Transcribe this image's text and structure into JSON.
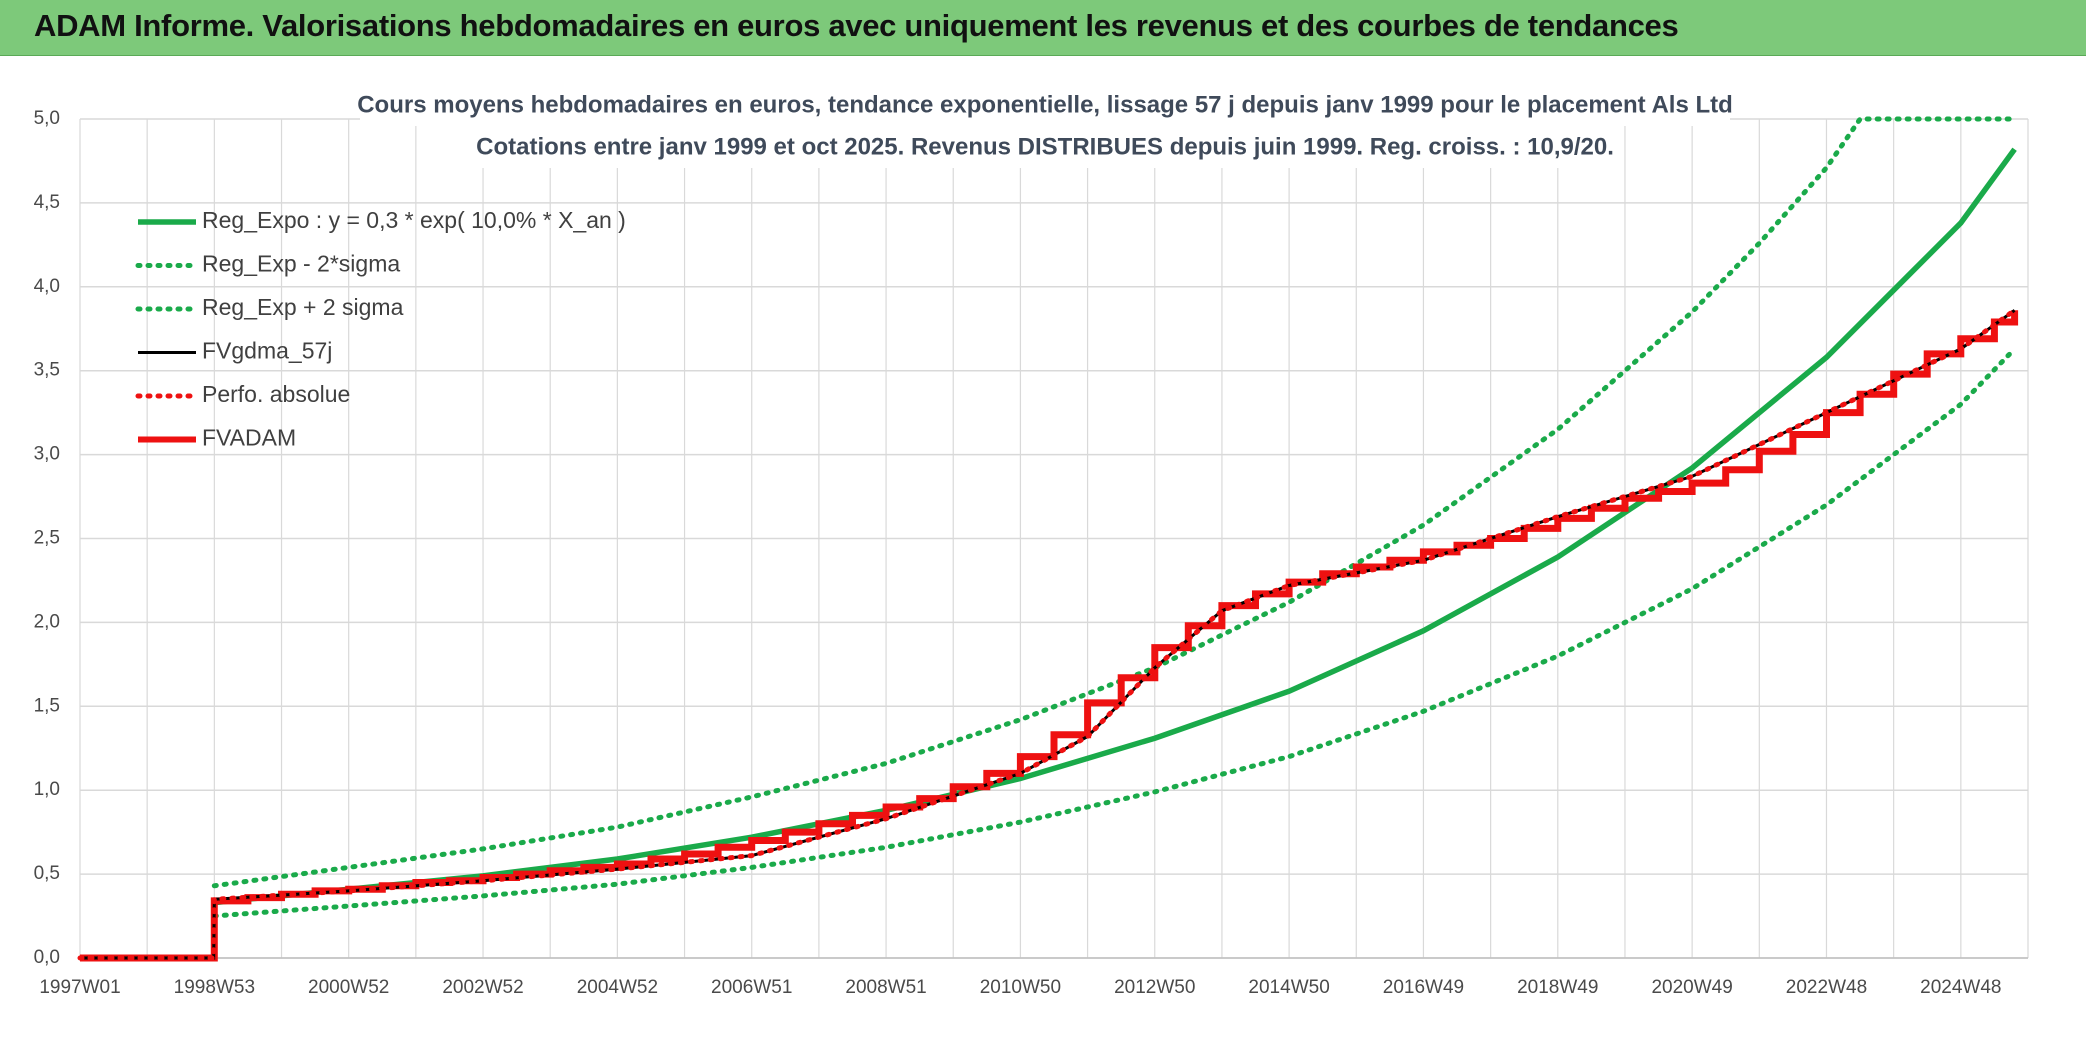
{
  "header": {
    "title": "ADAM Informe. Valorisations hebdomadaires en euros avec uniquement les revenus et des courbes de tendances"
  },
  "colors": {
    "header_bg": "#7dc97a",
    "reg_green": "#1aaa4a",
    "fv_black": "#000000",
    "red": "#ee1111",
    "grid": "#d9d9d9",
    "corner_accent": "#f2c40f"
  },
  "chart_data": {
    "type": "line",
    "title_line1": "Cours moyens hebdomadaires en euros, tendance exponentielle, lissage 57 j depuis janv 1999 pour le placement Als Ltd",
    "title_line2": "Cotations entre janv 1999 et oct 2025. Revenus DISTRIBUES depuis juin 1999. Reg. croiss. : 10,9/20.",
    "xlabel": "",
    "ylabel": "",
    "ylim": [
      0,
      5
    ],
    "y_ticks": [
      "0,0",
      "0,5",
      "1,0",
      "1,5",
      "2,0",
      "2,5",
      "3,0",
      "3,5",
      "4,0",
      "4,5",
      "5,0"
    ],
    "x_range_years": [
      1997.0,
      2026.0
    ],
    "x_tick_labels": [
      "1997W01",
      "1998W53",
      "2000W52",
      "2002W52",
      "2004W52",
      "2006W51",
      "2008W51",
      "2010W50",
      "2012W50",
      "2014W50",
      "2016W49",
      "2018W49",
      "2020W49",
      "2022W48",
      "2024W48"
    ],
    "x_tick_years": [
      1997.0,
      1999.0,
      2001.0,
      2003.0,
      2005.0,
      2007.0,
      2009.0,
      2011.0,
      2013.0,
      2015.0,
      2017.0,
      2019.0,
      2021.0,
      2023.0,
      2025.0
    ],
    "grid": true,
    "legend_position": "top-left",
    "series": [
      {
        "name": "Reg_Expo : y = 0,3 * exp( 10,0% *  X_an )",
        "color": "#1aaa4a",
        "style": "solid",
        "x": [
          1999.0,
          2001.0,
          2003.0,
          2005.0,
          2007.0,
          2009.0,
          2011.0,
          2013.0,
          2015.0,
          2017.0,
          2019.0,
          2021.0,
          2023.0,
          2025.0,
          2025.8
        ],
        "y": [
          0.33,
          0.41,
          0.49,
          0.59,
          0.72,
          0.88,
          1.07,
          1.31,
          1.59,
          1.95,
          2.39,
          2.92,
          3.58,
          4.38,
          4.82
        ]
      },
      {
        "name": "Reg_Exp - 2*sigma",
        "color": "#1aaa4a",
        "style": "dotted",
        "x": [
          1999.0,
          2001.0,
          2003.0,
          2005.0,
          2007.0,
          2009.0,
          2011.0,
          2013.0,
          2015.0,
          2017.0,
          2019.0,
          2021.0,
          2023.0,
          2025.0,
          2025.8
        ],
        "y": [
          0.25,
          0.31,
          0.37,
          0.44,
          0.54,
          0.66,
          0.81,
          0.99,
          1.2,
          1.47,
          1.8,
          2.2,
          2.7,
          3.3,
          3.63
        ]
      },
      {
        "name": "Reg_Exp + 2 sigma",
        "color": "#1aaa4a",
        "style": "dotted",
        "x": [
          1999.0,
          2001.0,
          2003.0,
          2005.0,
          2007.0,
          2009.0,
          2011.0,
          2013.0,
          2015.0,
          2017.0,
          2019.0,
          2021.0,
          2022.0,
          2023.0,
          2023.5,
          2025.8
        ],
        "y": [
          0.43,
          0.54,
          0.65,
          0.78,
          0.96,
          1.16,
          1.42,
          1.73,
          2.12,
          2.58,
          3.15,
          3.85,
          4.26,
          4.71,
          5.0,
          5.0
        ]
      },
      {
        "name": "FVgdma_57j",
        "color": "#000000",
        "style": "solid",
        "x": [
          1997.0,
          1998.99,
          1999.0,
          2001.0,
          2003.0,
          2005.0,
          2007.0,
          2009.0,
          2011.0,
          2012.0,
          2013.0,
          2014.0,
          2015.0,
          2017.0,
          2019.0,
          2020.0,
          2021.0,
          2023.0,
          2025.0,
          2025.8
        ],
        "y": [
          0.0,
          0.0,
          0.35,
          0.4,
          0.46,
          0.53,
          0.61,
          0.83,
          1.1,
          1.32,
          1.73,
          2.07,
          2.22,
          2.37,
          2.63,
          2.75,
          2.87,
          3.25,
          3.63,
          3.86
        ]
      },
      {
        "name": "Perfo. absolue",
        "color": "#ee1111",
        "style": "dotted",
        "x": [
          1997.0,
          1998.99,
          1999.0,
          2001.0,
          2003.0,
          2005.0,
          2007.0,
          2009.0,
          2011.0,
          2012.0,
          2013.0,
          2014.0,
          2015.0,
          2017.0,
          2019.0,
          2020.0,
          2021.0,
          2023.0,
          2025.0,
          2025.8
        ],
        "y": [
          0.0,
          0.0,
          0.35,
          0.4,
          0.46,
          0.53,
          0.61,
          0.83,
          1.1,
          1.32,
          1.73,
          2.07,
          2.22,
          2.37,
          2.63,
          2.75,
          2.87,
          3.25,
          3.63,
          3.86
        ]
      },
      {
        "name": "FVADAM",
        "color": "#ee1111",
        "style": "step",
        "x": [
          1997.0,
          1998.99,
          1999.0,
          1999.5,
          2000.0,
          2000.5,
          2001.0,
          2001.5,
          2002.0,
          2002.5,
          2003.0,
          2003.5,
          2004.0,
          2004.5,
          2005.0,
          2005.5,
          2006.0,
          2006.5,
          2007.0,
          2007.5,
          2008.0,
          2008.5,
          2009.0,
          2009.5,
          2010.0,
          2010.5,
          2011.0,
          2011.5,
          2012.0,
          2012.5,
          2013.0,
          2013.5,
          2014.0,
          2014.5,
          2015.0,
          2015.5,
          2016.0,
          2016.5,
          2017.0,
          2017.5,
          2018.0,
          2018.5,
          2019.0,
          2019.5,
          2020.0,
          2020.5,
          2021.0,
          2021.5,
          2022.0,
          2022.5,
          2023.0,
          2023.5,
          2024.0,
          2024.5,
          2025.0,
          2025.5,
          2025.8
        ],
        "y": [
          0.0,
          0.0,
          0.34,
          0.36,
          0.38,
          0.4,
          0.41,
          0.43,
          0.45,
          0.46,
          0.48,
          0.5,
          0.52,
          0.54,
          0.56,
          0.59,
          0.62,
          0.66,
          0.7,
          0.75,
          0.8,
          0.85,
          0.9,
          0.95,
          1.02,
          1.1,
          1.2,
          1.33,
          1.52,
          1.67,
          1.85,
          1.98,
          2.1,
          2.17,
          2.24,
          2.29,
          2.33,
          2.37,
          2.42,
          2.46,
          2.5,
          2.56,
          2.62,
          2.68,
          2.74,
          2.78,
          2.83,
          2.91,
          3.02,
          3.12,
          3.25,
          3.36,
          3.48,
          3.6,
          3.69,
          3.79,
          3.86
        ]
      }
    ]
  }
}
